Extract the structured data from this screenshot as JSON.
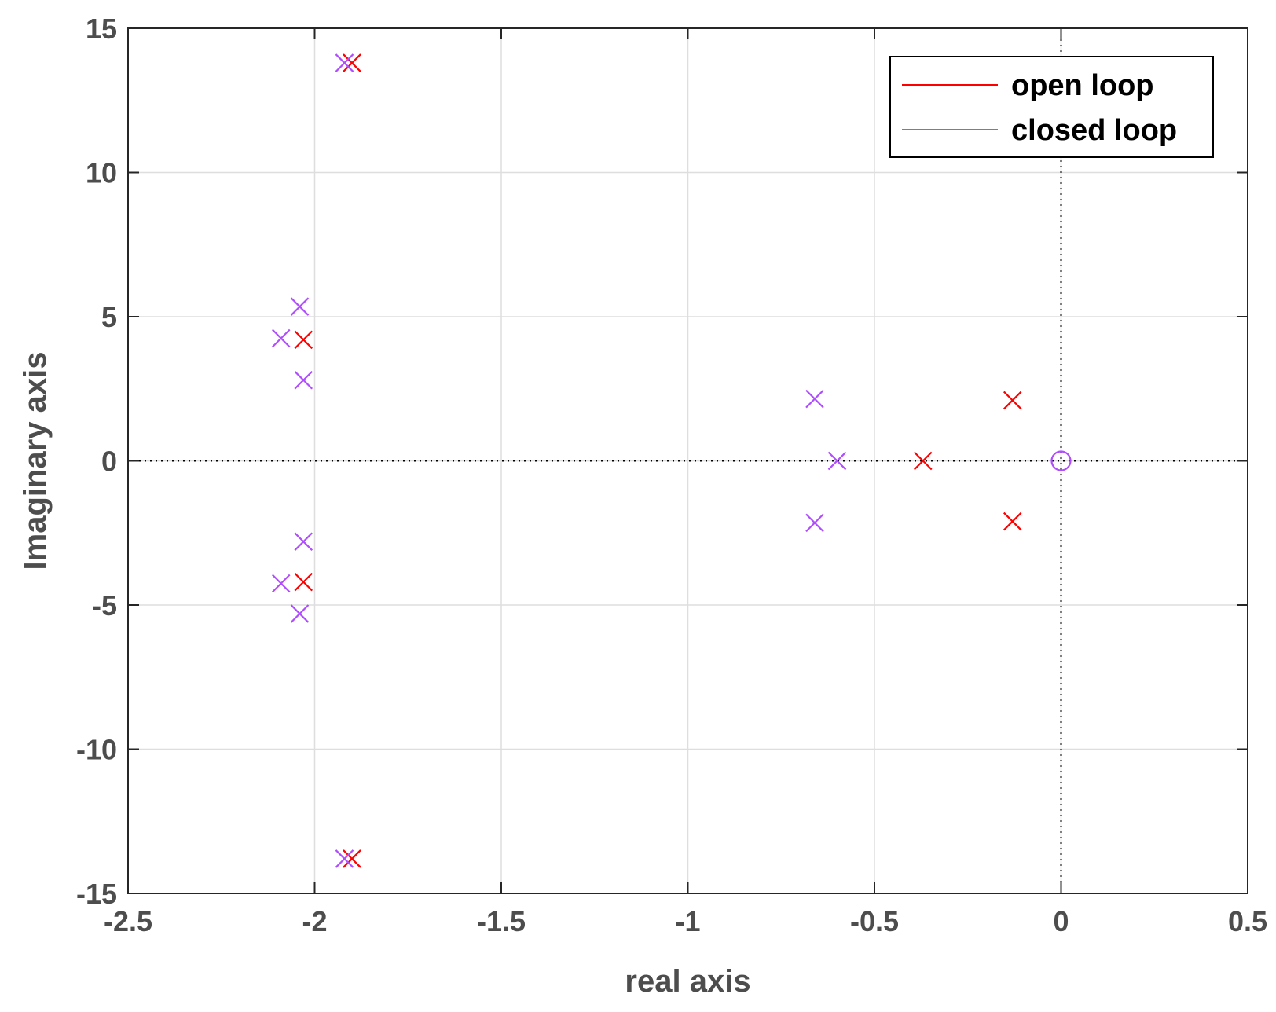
{
  "chart_data": {
    "type": "scatter",
    "title": "",
    "xlabel": "real axis",
    "ylabel": "Imaginary axis",
    "xlim": [
      -2.5,
      0.5
    ],
    "ylim": [
      -15,
      15
    ],
    "x_ticks": [
      -2.5,
      -2,
      -1.5,
      -1,
      -0.5,
      0,
      0.5
    ],
    "y_ticks": [
      -15,
      -10,
      -5,
      0,
      5,
      10,
      15
    ],
    "x_tick_labels": [
      "-2.5",
      "-2",
      "-1.5",
      "-1",
      "-0.5",
      "0",
      "0.5"
    ],
    "y_tick_labels": [
      "-15",
      "-10",
      "-5",
      "0",
      "5",
      "10",
      "15"
    ],
    "grid": true,
    "reference_lines": {
      "x": 0,
      "y": 0,
      "style": "dotted"
    },
    "legend": {
      "position": "top-right"
    },
    "series": [
      {
        "name": "open loop",
        "color": "#ff0000",
        "marker": "x",
        "points": [
          {
            "x": -1.9,
            "y": 13.8
          },
          {
            "x": -1.9,
            "y": -13.8
          },
          {
            "x": -2.03,
            "y": 4.2
          },
          {
            "x": -2.03,
            "y": -4.2
          },
          {
            "x": -0.37,
            "y": 0
          },
          {
            "x": -0.13,
            "y": 2.1
          },
          {
            "x": -0.13,
            "y": -2.1
          }
        ]
      },
      {
        "name": "closed loop",
        "color": "#b04dff",
        "marker": "x",
        "points": [
          {
            "x": -1.92,
            "y": 13.8
          },
          {
            "x": -1.92,
            "y": -13.8
          },
          {
            "x": -2.04,
            "y": 5.35
          },
          {
            "x": -2.04,
            "y": -5.3
          },
          {
            "x": -2.09,
            "y": 4.25
          },
          {
            "x": -2.09,
            "y": -4.25
          },
          {
            "x": -2.03,
            "y": 2.8
          },
          {
            "x": -2.03,
            "y": -2.8
          },
          {
            "x": -0.66,
            "y": 2.15
          },
          {
            "x": -0.66,
            "y": -2.15
          },
          {
            "x": -0.6,
            "y": 0
          }
        ],
        "zeros": [
          {
            "x": 0,
            "y": 0
          }
        ]
      }
    ]
  }
}
